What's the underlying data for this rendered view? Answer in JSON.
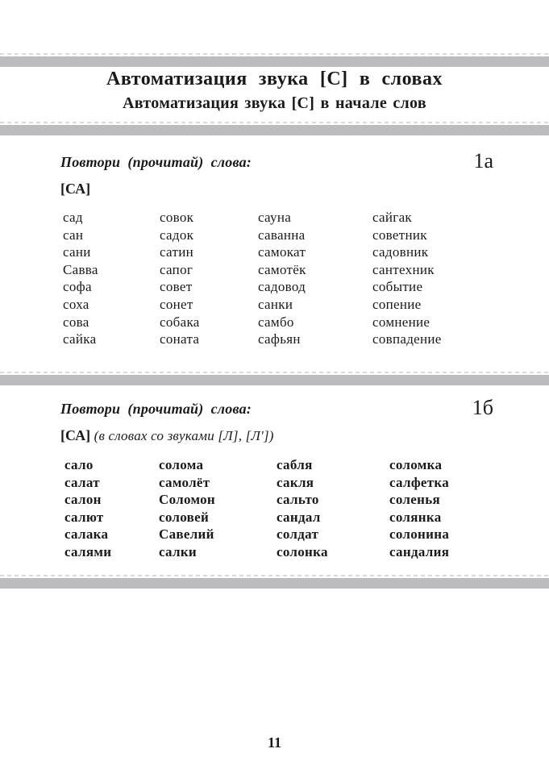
{
  "page": {
    "title": "Автоматизация звука [С] в словах",
    "subtitle": "Автоматизация звука [С] в начале слов",
    "page_number": "11"
  },
  "sections": [
    {
      "instruction": "Повтори (прочитай) слова:",
      "label": "1а",
      "sound_group": "[СА]",
      "sound_note": "",
      "columns": [
        [
          "сад",
          "сан",
          "сани",
          "Савва",
          "софа",
          "соха",
          "сова",
          "сайка"
        ],
        [
          "совок",
          "садок",
          "сатин",
          "сапог",
          "совет",
          "сонет",
          "собака",
          "соната"
        ],
        [
          "сауна",
          "саванна",
          "самокат",
          "самотёк",
          "садовод",
          "санки",
          "самбо",
          "сафьян"
        ],
        [
          "сайгак",
          "советник",
          "садовник",
          "сантехник",
          "событие",
          "сопение",
          "сомнение",
          "совпадение"
        ]
      ]
    },
    {
      "instruction": "Повтори (прочитай) слова:",
      "label": "1б",
      "sound_group": "[СА]",
      "sound_note": "(в словах со звуками [Л], [Л'])",
      "columns": [
        [
          "сало",
          "салат",
          "салон",
          "салют",
          "салака",
          "салями"
        ],
        [
          "солома",
          "самолёт",
          "Соломон",
          "соловей",
          "Савелий",
          "салки"
        ],
        [
          "сабля",
          "сакля",
          "сальто",
          "сандал",
          "солдат",
          "солонка"
        ],
        [
          "соломка",
          "салфетка",
          "соленья",
          "солянка",
          "солонина",
          "сандалия"
        ]
      ]
    }
  ],
  "colors": {
    "bar": "#bcbcbe",
    "dash": "#d9d9d9",
    "text": "#1a1a1a"
  }
}
